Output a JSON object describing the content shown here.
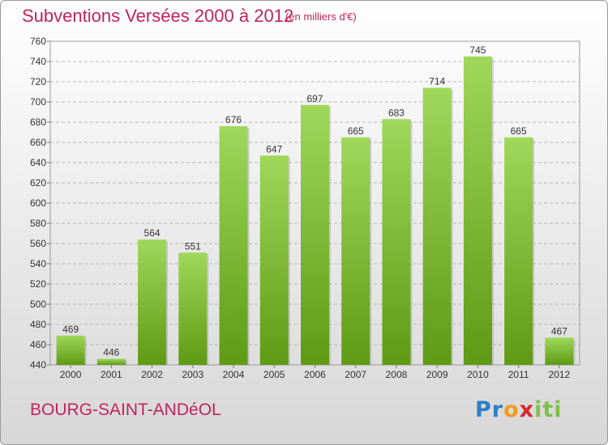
{
  "header": {
    "title": "Subventions Versées 2000 à 2012",
    "units": "(en milliers d'€)"
  },
  "footer": {
    "commune": "BOURG-SAINT-ANDéOL",
    "logo_text": "Proxiti"
  },
  "colors": {
    "title": "#c0245c",
    "bar_top": "#9fd85a",
    "bar_bottom": "#5e9a14"
  },
  "chart_data": {
    "type": "bar",
    "title": "Subventions Versées 2000 à 2012",
    "subtitle": "(en milliers d'€)",
    "categories": [
      "2000",
      "2001",
      "2002",
      "2003",
      "2004",
      "2005",
      "2006",
      "2007",
      "2008",
      "2009",
      "2010",
      "2011",
      "2012"
    ],
    "values": [
      469,
      446,
      564,
      551,
      676,
      647,
      697,
      665,
      683,
      714,
      745,
      665,
      467
    ],
    "ylim": [
      440,
      760
    ],
    "ytick_step": 20,
    "grid": true,
    "data_labels": true
  }
}
